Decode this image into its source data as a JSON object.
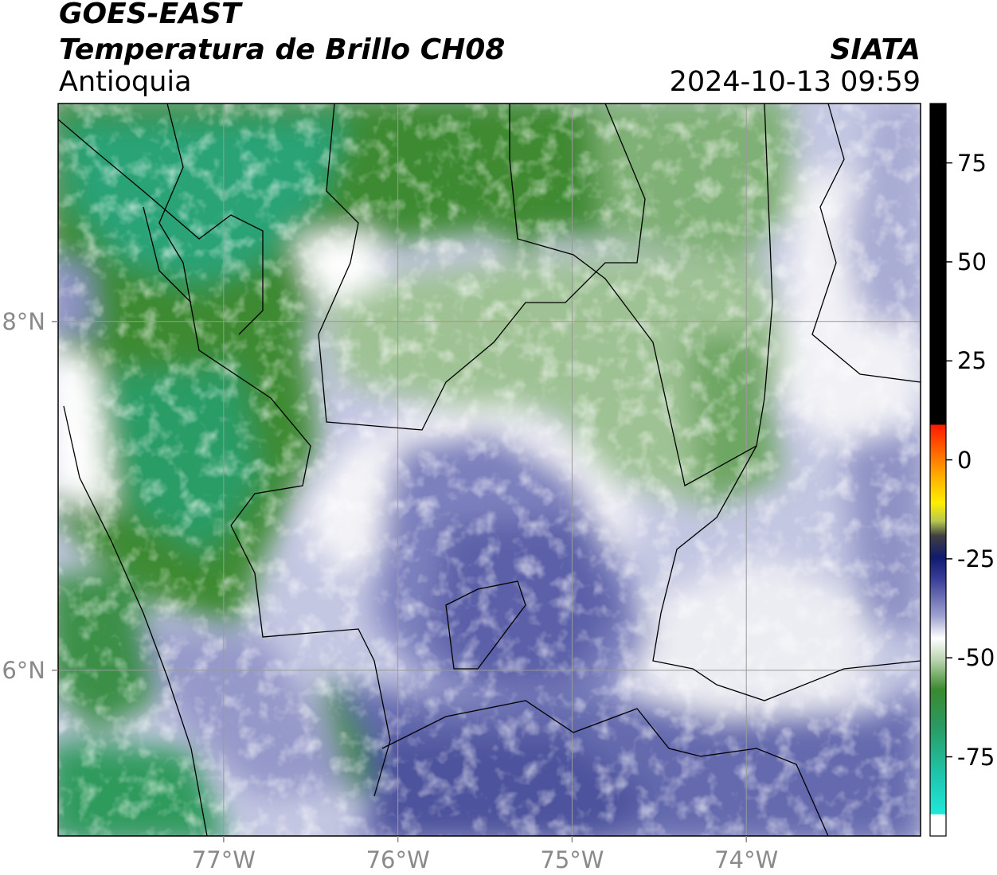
{
  "header": {
    "satellite": "GOES-EAST",
    "product": "Temperatura de Brillo CH08",
    "region": "Antioquia",
    "brand": "SIATA",
    "timestamp": "2024-10-13 09:59"
  },
  "map": {
    "lon_range": [
      -77.95,
      -73.0
    ],
    "lat_range": [
      5.05,
      9.25
    ],
    "lon_ticks": [
      {
        "value": -77,
        "label": "77°W"
      },
      {
        "value": -76,
        "label": "76°W"
      },
      {
        "value": -75,
        "label": "75°W"
      },
      {
        "value": -74,
        "label": "74°W"
      }
    ],
    "lat_ticks": [
      {
        "value": 8,
        "label": "8°N"
      },
      {
        "value": 6,
        "label": "6°N"
      }
    ],
    "gridlines": true,
    "colors": {
      "cold_cyan": "#1fe8d8",
      "teal": "#2ba87a",
      "green": "#3a8a2e",
      "light_green": "#b9d4ad",
      "white": "#ffffff",
      "lavender": "#aeb1d6",
      "blue_purple": "#5a5fa8",
      "navy": "#16207d",
      "yellow": "#ffee00",
      "orange": "#ff9000",
      "red": "#ff1a00",
      "black": "#000000"
    }
  },
  "colorbar": {
    "range": [
      -95,
      90
    ],
    "ticks": [
      {
        "value": 75,
        "label": "75"
      },
      {
        "value": 50,
        "label": "50"
      },
      {
        "value": 25,
        "label": "25"
      },
      {
        "value": 0,
        "label": "0"
      },
      {
        "value": -25,
        "label": "-25"
      },
      {
        "value": -50,
        "label": "-50"
      },
      {
        "value": -75,
        "label": "-75"
      }
    ]
  }
}
